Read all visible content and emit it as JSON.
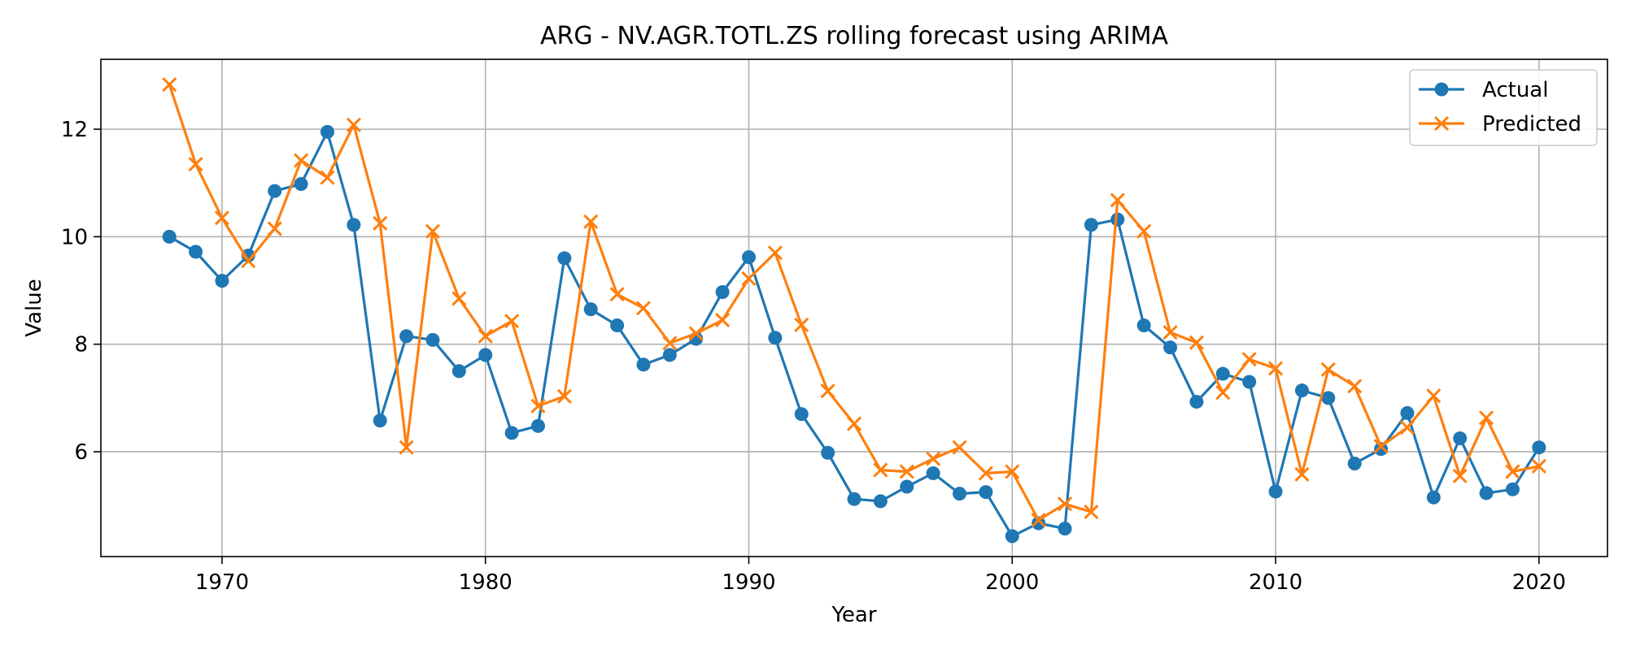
{
  "chart_data": {
    "type": "line",
    "title": "ARG - NV.AGR.TOTL.ZS rolling forecast using ARIMA",
    "xlabel": "Year",
    "ylabel": "Value",
    "xlim": [
      1965.4,
      2022.6
    ],
    "ylim": [
      4.05,
      13.3
    ],
    "xticks": [
      1970,
      1980,
      1990,
      2000,
      2010,
      2020
    ],
    "yticks": [
      6,
      8,
      10,
      12
    ],
    "grid": true,
    "legend_position": "top-right",
    "x": [
      1968,
      1969,
      1970,
      1971,
      1972,
      1973,
      1974,
      1975,
      1976,
      1977,
      1978,
      1979,
      1980,
      1981,
      1982,
      1983,
      1984,
      1985,
      1986,
      1987,
      1988,
      1989,
      1990,
      1991,
      1992,
      1993,
      1994,
      1995,
      1996,
      1997,
      1998,
      1999,
      2000,
      2001,
      2002,
      2003,
      2004,
      2005,
      2006,
      2007,
      2008,
      2009,
      2010,
      2011,
      2012,
      2013,
      2014,
      2015,
      2016,
      2017,
      2018,
      2019,
      2020
    ],
    "series": [
      {
        "name": "Actual",
        "color": "#1f77b4",
        "marker": "circle",
        "values": [
          10.0,
          9.72,
          9.18,
          9.65,
          10.85,
          10.98,
          11.95,
          10.22,
          6.58,
          8.15,
          8.08,
          7.5,
          7.8,
          6.35,
          6.48,
          9.6,
          8.65,
          8.35,
          7.62,
          7.8,
          8.1,
          8.97,
          9.62,
          8.12,
          6.7,
          5.98,
          5.12,
          5.08,
          5.35,
          5.6,
          5.22,
          5.25,
          4.43,
          4.67,
          4.57,
          10.22,
          10.32,
          8.35,
          7.94,
          6.93,
          7.45,
          7.3,
          5.26,
          7.14,
          7.0,
          5.78,
          6.05,
          6.72,
          5.15,
          6.25,
          5.23,
          5.3,
          6.08
        ]
      },
      {
        "name": "Predicted",
        "color": "#ff7f0e",
        "marker": "x",
        "values": [
          12.83,
          11.35,
          10.35,
          9.55,
          10.15,
          11.42,
          11.1,
          12.08,
          10.25,
          6.08,
          10.1,
          8.85,
          8.15,
          8.43,
          6.85,
          7.03,
          10.28,
          8.93,
          8.67,
          8.02,
          8.2,
          8.45,
          9.22,
          9.7,
          8.36,
          7.13,
          6.52,
          5.66,
          5.63,
          5.87,
          6.08,
          5.6,
          5.63,
          4.73,
          5.03,
          4.88,
          10.68,
          10.1,
          8.22,
          8.03,
          7.1,
          7.72,
          7.55,
          5.58,
          7.53,
          7.22,
          6.1,
          6.45,
          7.04,
          5.55,
          6.63,
          5.63,
          5.73
        ]
      }
    ]
  }
}
